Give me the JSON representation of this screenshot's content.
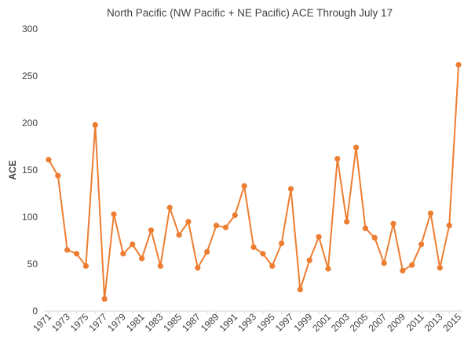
{
  "chart_data": {
    "type": "line",
    "title": "North Pacific (NW Pacific + NE Pacific) ACE Through July 17",
    "xlabel": "",
    "ylabel": "ACE",
    "ylim": [
      0,
      300
    ],
    "yticks": [
      0,
      50,
      100,
      150,
      200,
      250,
      300
    ],
    "grid": false,
    "legend": "none",
    "x": [
      1971,
      1972,
      1973,
      1974,
      1975,
      1976,
      1977,
      1978,
      1979,
      1980,
      1981,
      1982,
      1983,
      1984,
      1985,
      1986,
      1987,
      1988,
      1989,
      1990,
      1991,
      1992,
      1993,
      1994,
      1995,
      1996,
      1997,
      1998,
      1999,
      2000,
      2001,
      2002,
      2003,
      2004,
      2005,
      2006,
      2007,
      2008,
      2009,
      2010,
      2011,
      2012,
      2013,
      2014,
      2015
    ],
    "xtick_labels": [
      "1971",
      "1973",
      "1975",
      "1977",
      "1979",
      "1981",
      "1983",
      "1985",
      "1987",
      "1989",
      "1991",
      "1993",
      "1995",
      "1997",
      "1999",
      "2001",
      "2003",
      "2005",
      "2007",
      "2009",
      "2011",
      "2013",
      "2015"
    ],
    "series": [
      {
        "name": "",
        "values": [
          161,
          144,
          65,
          61,
          48,
          198,
          13,
          103,
          61,
          71,
          56,
          86,
          48,
          110,
          81,
          95,
          46,
          63,
          91,
          89,
          102,
          133,
          68,
          61,
          48,
          72,
          130,
          23,
          54,
          79,
          45,
          162,
          95,
          174,
          88,
          78,
          51,
          93,
          43,
          49,
          71,
          104,
          46,
          91,
          262
        ]
      }
    ],
    "colors": {
      "line": "#ed7d31",
      "axis": "#d9d9d9",
      "text": "#404040"
    }
  }
}
